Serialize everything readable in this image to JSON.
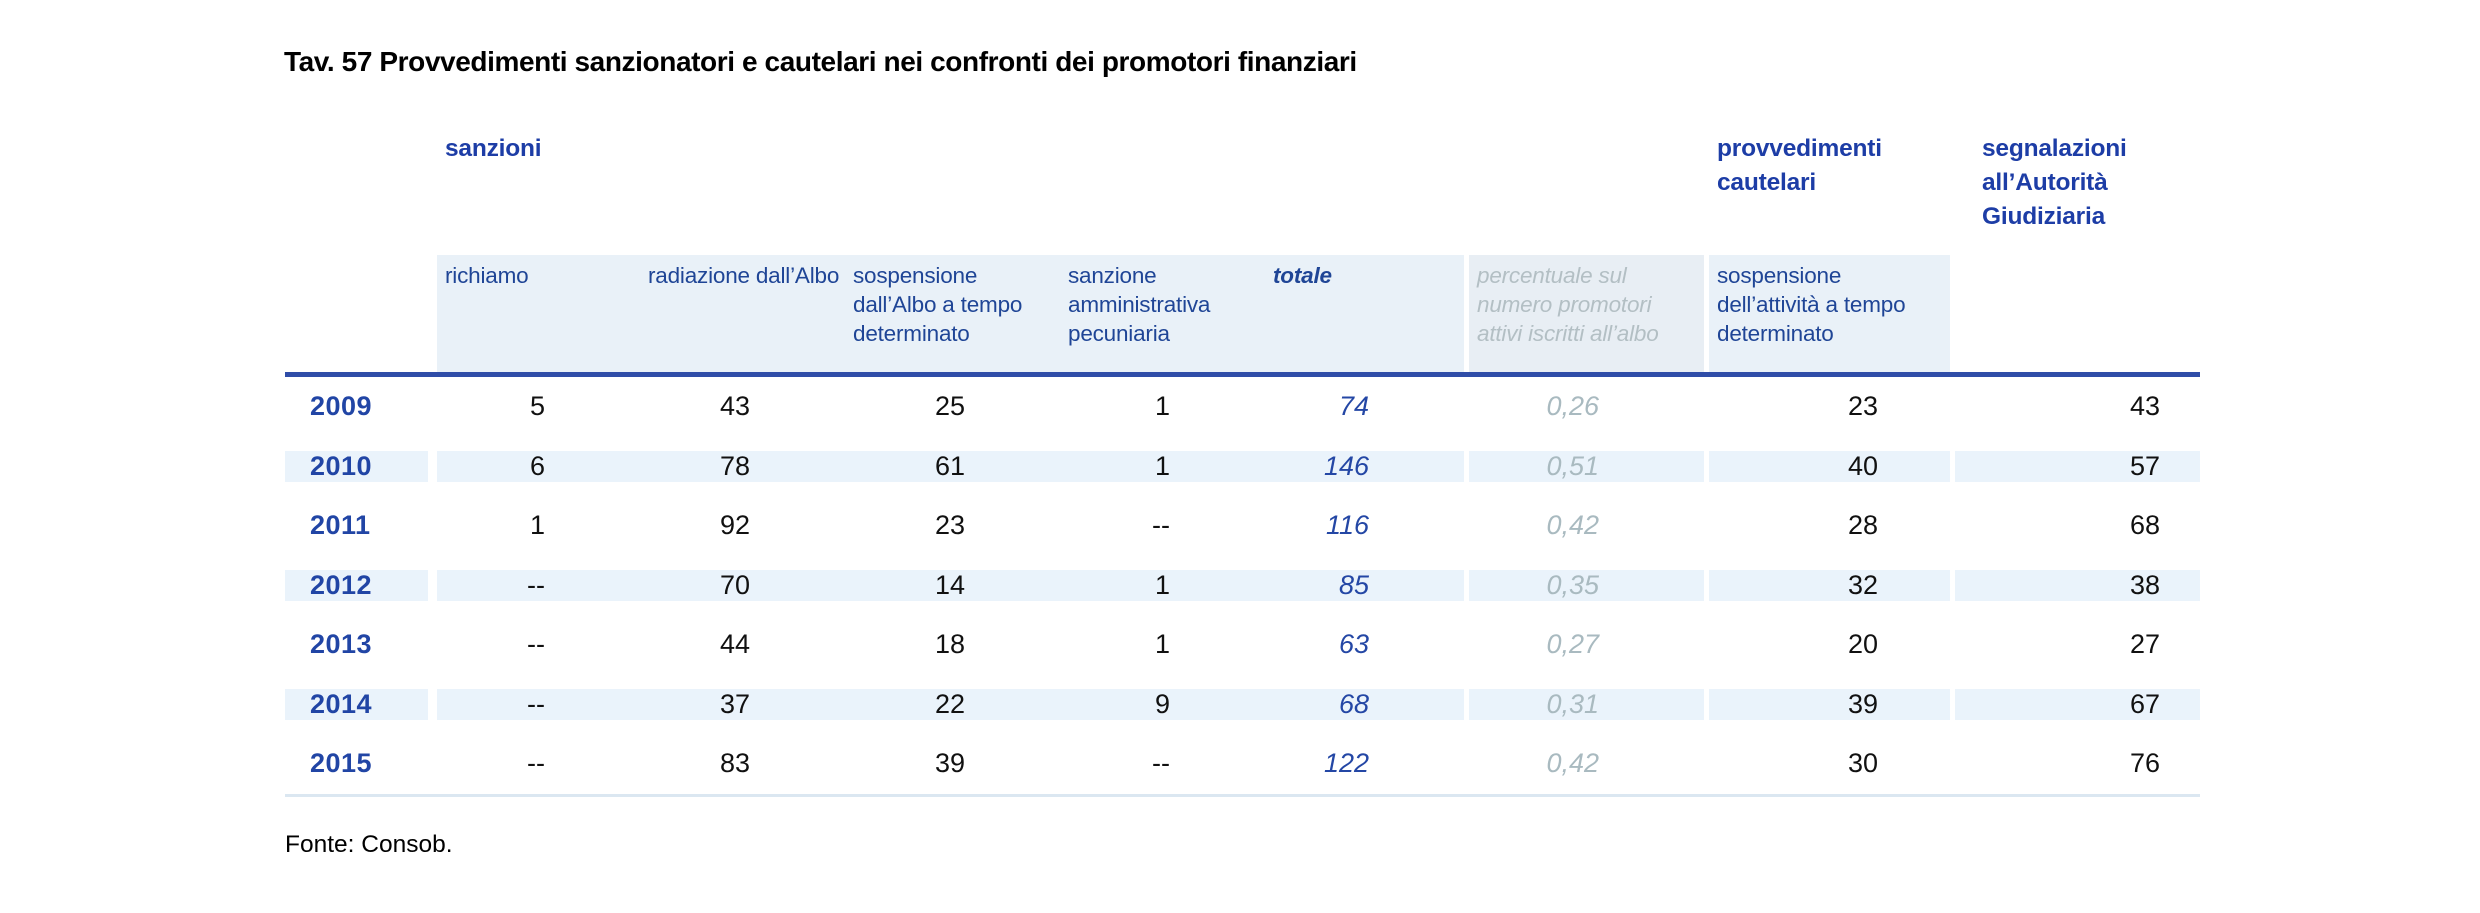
{
  "title": "Tav. 57 Provvedimenti sanzionatori e cautelari nei confronti dei promotori finanziari",
  "source": "Fonte: Consob.",
  "colors": {
    "group_header_blue": "#1d3da6",
    "column_header_blue": "#1f4596",
    "year_blue": "#2145a5",
    "totale_blue": "#2447a5",
    "muted_gray_italic": "#a9bac0",
    "header_band": "#e9f1f8",
    "percent_header_band": "#e8eef4",
    "row_stripe": "#eaf3fb",
    "header_rule": "#2f4da8",
    "bottom_rule": "#dbe7f1",
    "value_black": "#111111"
  },
  "table": {
    "group_headers": {
      "sanzioni": "sanzioni",
      "provvedimenti_cautelari": "provvedimenti cautelari",
      "segnalazioni": "segnalazioni all’Autorità Giudiziaria"
    },
    "column_headers": {
      "richiamo": "richiamo",
      "radiazione": "radiazione dall’Albo",
      "sospensione_albo": "sospensione dall’Albo a tempo determinato",
      "sanzione_amministrativa": "sanzione amministrativa pecuniaria",
      "totale": "totale",
      "percentuale": "percentuale sul numero promotori attivi iscritti all’albo",
      "sospensione_attivita": "sospensione dell’attività a tempo determinato"
    },
    "rows": [
      {
        "year": "2009",
        "values": [
          "5",
          "43",
          "25",
          "1",
          "74",
          "0,26",
          "23",
          "43"
        ]
      },
      {
        "year": "2010",
        "values": [
          "6",
          "78",
          "61",
          "1",
          "146",
          "0,51",
          "40",
          "57"
        ]
      },
      {
        "year": "2011",
        "values": [
          "1",
          "92",
          "23",
          "--",
          "116",
          "0,42",
          "28",
          "68"
        ]
      },
      {
        "year": "2012",
        "values": [
          "--",
          "70",
          "14",
          "1",
          "85",
          "0,35",
          "32",
          "38"
        ]
      },
      {
        "year": "2013",
        "values": [
          "--",
          "44",
          "18",
          "1",
          "63",
          "0,27",
          "20",
          "27"
        ]
      },
      {
        "year": "2014",
        "values": [
          "--",
          "37",
          "22",
          "9",
          "68",
          "0,31",
          "39",
          "67"
        ]
      },
      {
        "year": "2015",
        "values": [
          "--",
          "83",
          "39",
          "--",
          "122",
          "0,42",
          "30",
          "76"
        ]
      }
    ]
  }
}
